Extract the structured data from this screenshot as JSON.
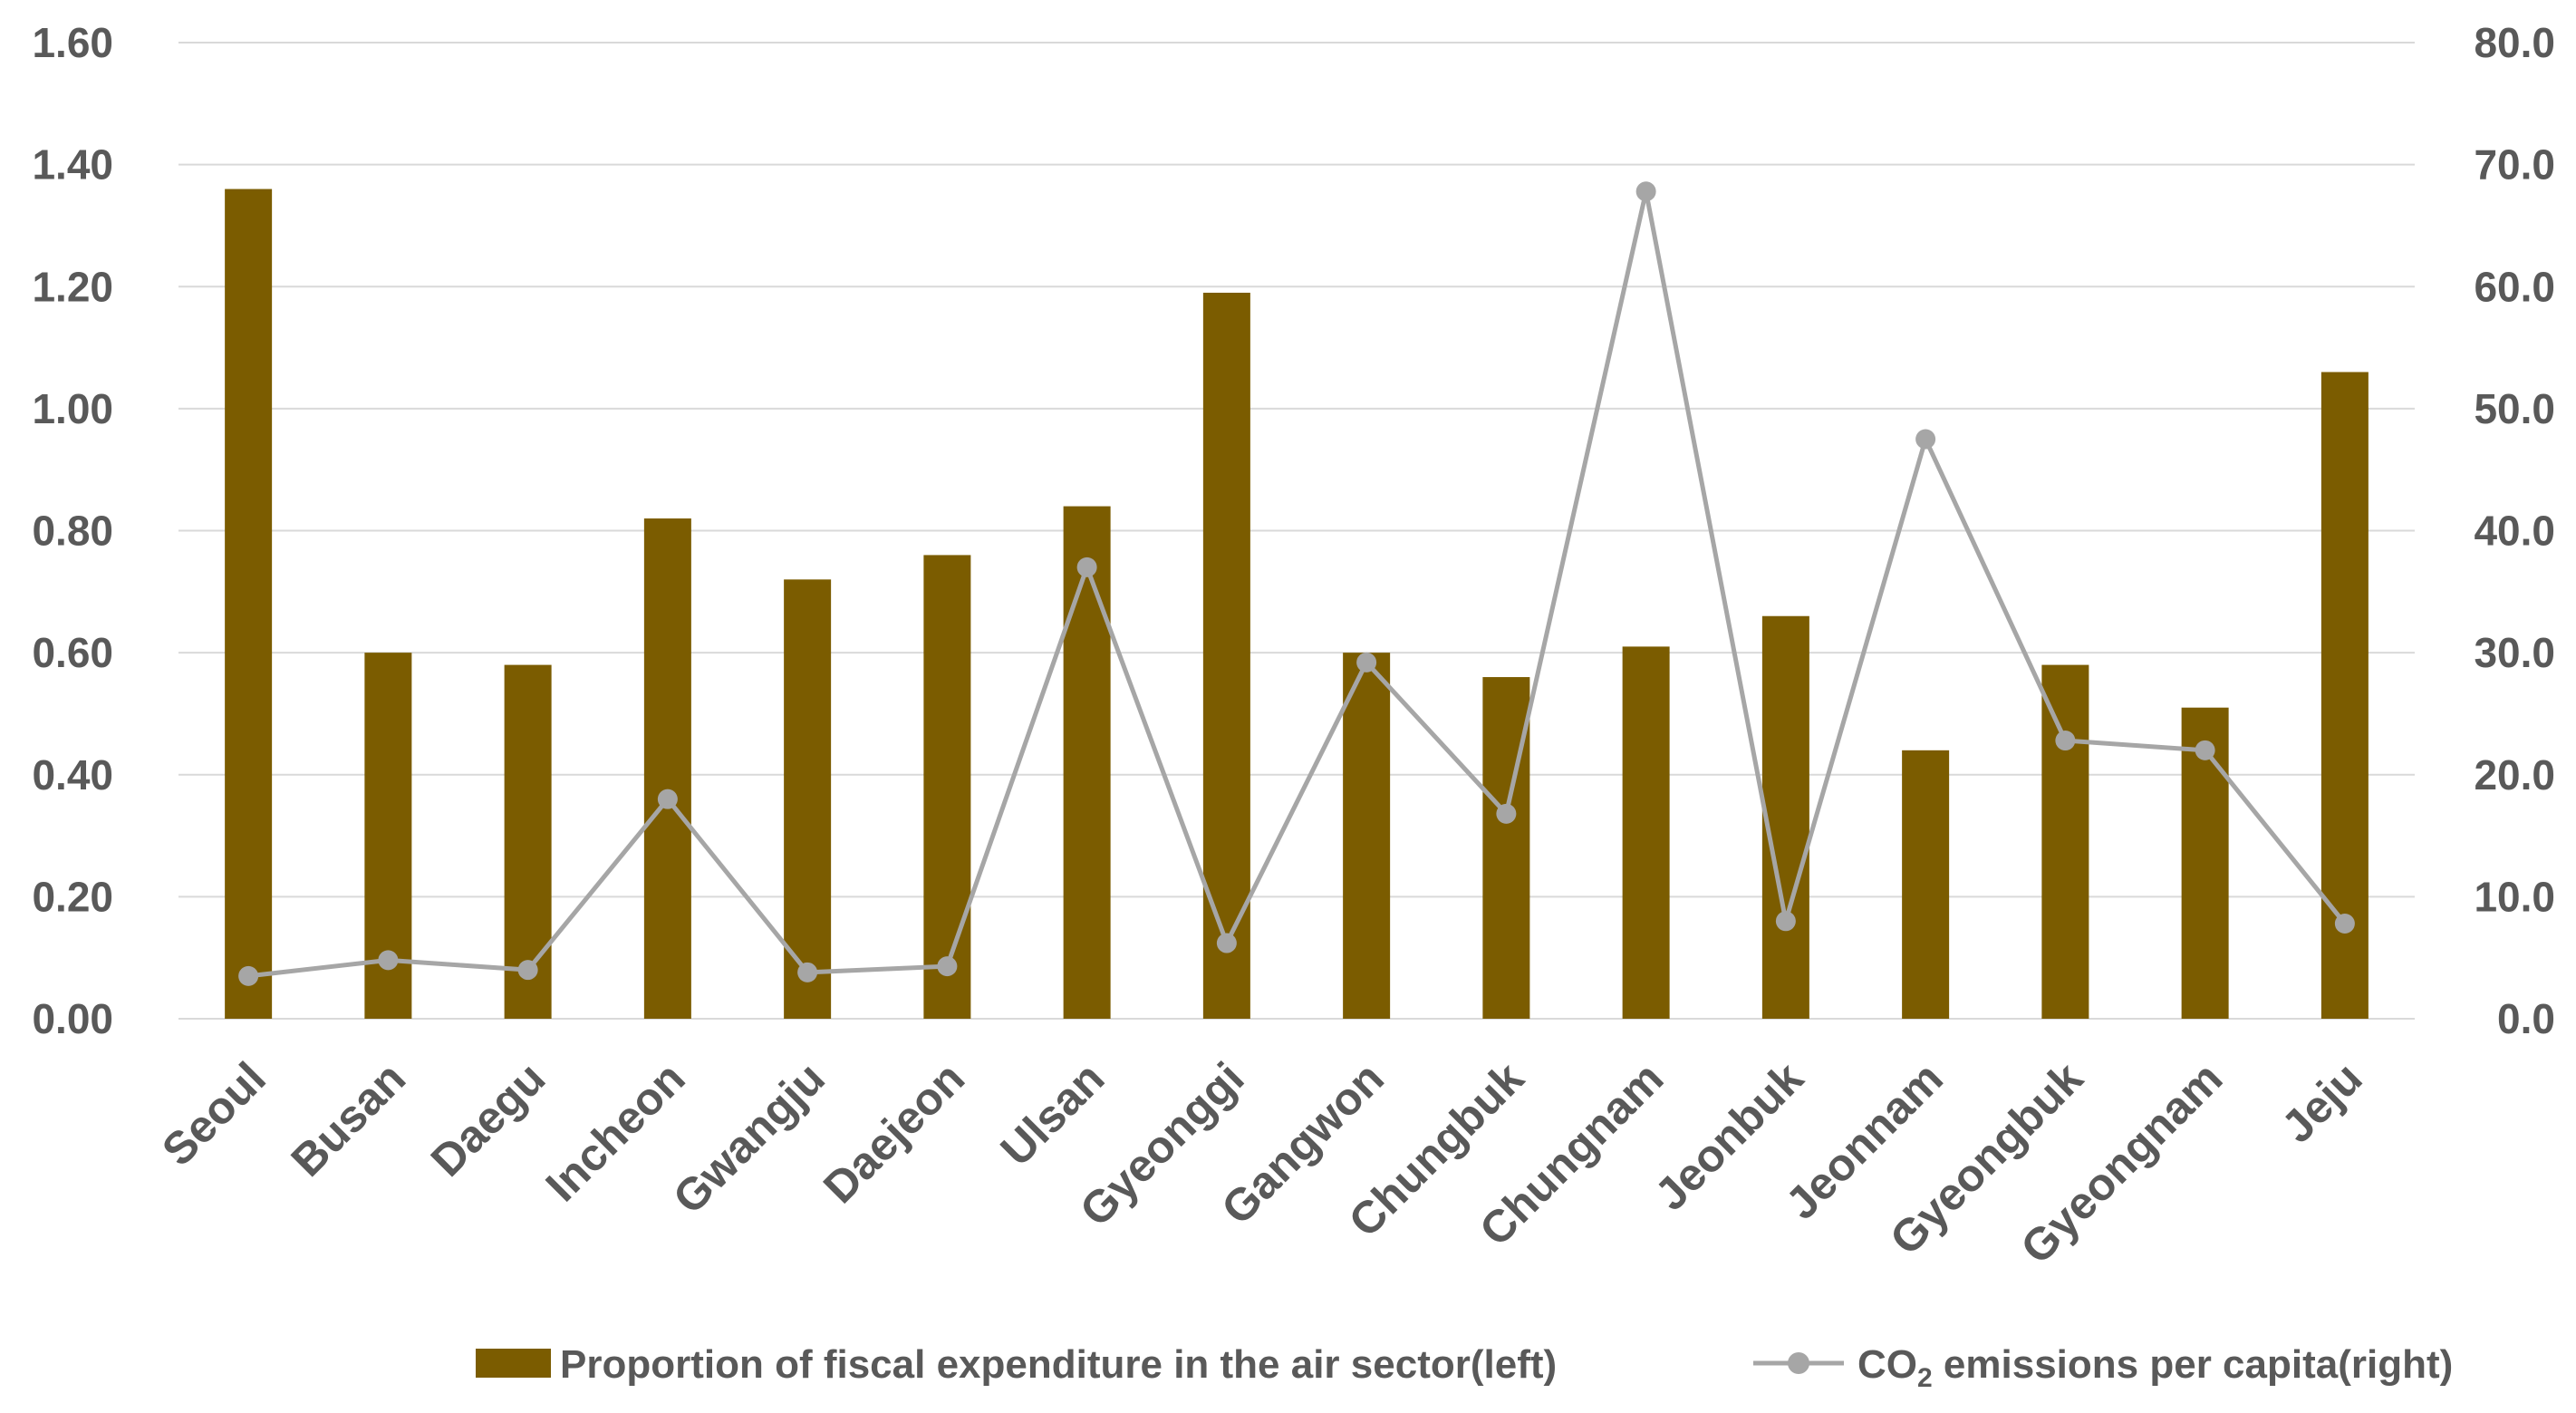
{
  "chart_data": {
    "type": "bar",
    "categories": [
      "Seoul",
      "Busan",
      "Daegu",
      "Incheon",
      "Gwangju",
      "Daejeon",
      "Ulsan",
      "Gyeonggi",
      "Gangwon",
      "Chungbuk",
      "Chungnam",
      "Jeonbuk",
      "Jeonnam",
      "Gyeongbuk",
      "Gyeongnam",
      "Jeju"
    ],
    "series": [
      {
        "name": "Proportion of fiscal expenditure in the air sector(left)",
        "type": "bar",
        "axis": "left",
        "values": [
          1.36,
          0.6,
          0.58,
          0.82,
          0.72,
          0.76,
          0.84,
          1.19,
          0.6,
          0.56,
          0.61,
          0.66,
          0.44,
          0.58,
          0.51,
          1.06
        ]
      },
      {
        "name": "CO2 emissions per capita(right)",
        "name_prefix": "CO",
        "name_subscript": "2",
        "name_suffix": " emissions per capita(right)",
        "type": "line",
        "axis": "right",
        "values": [
          3.5,
          4.8,
          4.0,
          18.0,
          3.8,
          4.3,
          37.0,
          6.2,
          29.2,
          16.8,
          67.8,
          8.0,
          47.5,
          22.8,
          22.0,
          7.8
        ]
      }
    ],
    "left_axis": {
      "min": 0,
      "max": 1.6,
      "ticks": [
        "0.00",
        "0.20",
        "0.40",
        "0.60",
        "0.80",
        "1.00",
        "1.20",
        "1.40",
        "1.60"
      ]
    },
    "right_axis": {
      "min": 0,
      "max": 80,
      "ticks": [
        "0.0",
        "10.0",
        "20.0",
        "30.0",
        "40.0",
        "50.0",
        "60.0",
        "70.0",
        "80.0"
      ]
    },
    "grid": true,
    "legend_position": "bottom-right",
    "colors": {
      "bar": "#7B5C00",
      "line": "#A6A6A6",
      "grid": "#D9D9D9",
      "text": "#595959"
    }
  }
}
